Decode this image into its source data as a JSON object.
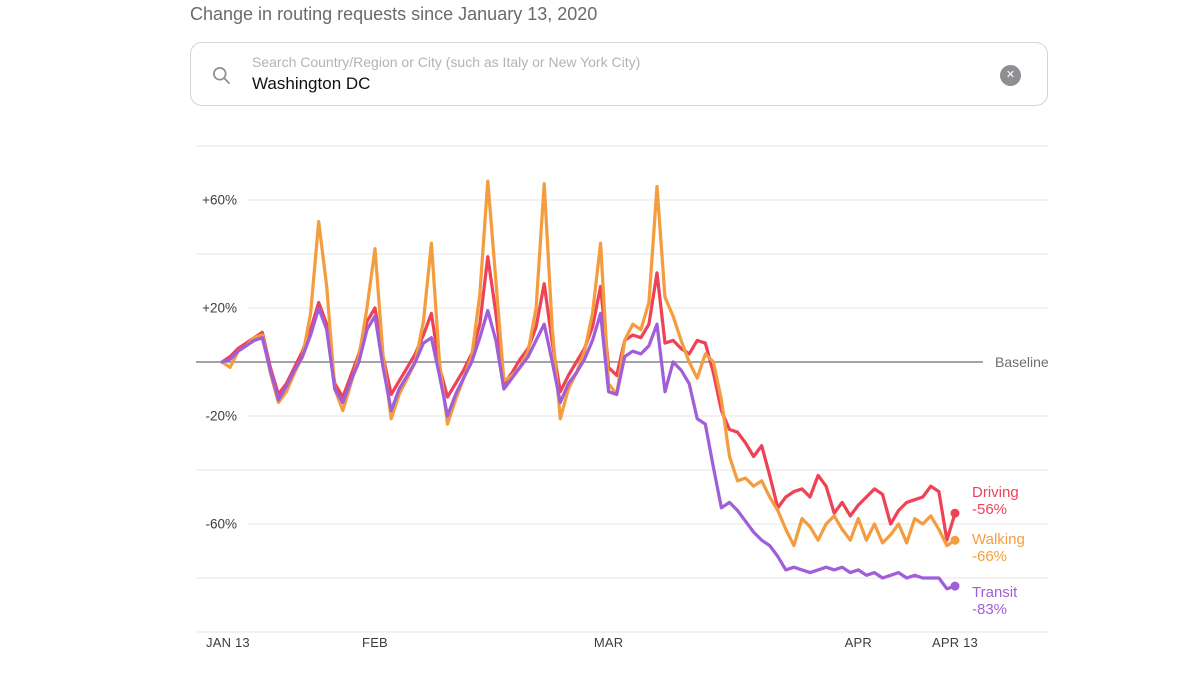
{
  "page": {
    "title": "Change in routing requests since January 13, 2020"
  },
  "search": {
    "placeholder": "Search Country/Region or City (such as Italy or New York City)",
    "value": "Washington DC",
    "clear_glyph": "✕"
  },
  "chart_data": {
    "type": "line",
    "title": "Change in routing requests since January 13, 2020",
    "x_start": "Jan 13, 2020",
    "x_end": "Apr 13, 2020",
    "ylim": [
      -100,
      80
    ],
    "grid": true,
    "baseline_label": "Baseline",
    "y_grid": [
      {
        "value": 80
      },
      {
        "value": 60,
        "label": "+60%"
      },
      {
        "value": 40
      },
      {
        "value": 20,
        "label": "+20%"
      },
      {
        "value": 0,
        "baseline": true
      },
      {
        "value": -20,
        "label": "-20%"
      },
      {
        "value": -40
      },
      {
        "value": -60,
        "label": "-60%"
      },
      {
        "value": -80
      },
      {
        "value": -100
      }
    ],
    "x_ticks": [
      {
        "label": "JAN 13",
        "day": 0,
        "align": "start"
      },
      {
        "label": "FEB",
        "day": 19
      },
      {
        "label": "MAR",
        "day": 48
      },
      {
        "label": "APR",
        "day": 79
      },
      {
        "label": "APR 13",
        "day": 91
      }
    ],
    "dates": [
      "Jan 13",
      "Jan 14",
      "Jan 15",
      "Jan 16",
      "Jan 17",
      "Jan 18",
      "Jan 19",
      "Jan 20",
      "Jan 21",
      "Jan 22",
      "Jan 23",
      "Jan 24",
      "Jan 25",
      "Jan 26",
      "Jan 27",
      "Jan 28",
      "Jan 29",
      "Jan 30",
      "Jan 31",
      "Feb 1",
      "Feb 2",
      "Feb 3",
      "Feb 4",
      "Feb 5",
      "Feb 6",
      "Feb 7",
      "Feb 8",
      "Feb 9",
      "Feb 10",
      "Feb 11",
      "Feb 12",
      "Feb 13",
      "Feb 14",
      "Feb 15",
      "Feb 16",
      "Feb 17",
      "Feb 18",
      "Feb 19",
      "Feb 20",
      "Feb 21",
      "Feb 22",
      "Feb 23",
      "Feb 24",
      "Feb 25",
      "Feb 26",
      "Feb 27",
      "Feb 28",
      "Feb 29",
      "Mar 1",
      "Mar 2",
      "Mar 3",
      "Mar 4",
      "Mar 5",
      "Mar 6",
      "Mar 7",
      "Mar 8",
      "Mar 9",
      "Mar 10",
      "Mar 11",
      "Mar 12",
      "Mar 13",
      "Mar 14",
      "Mar 15",
      "Mar 16",
      "Mar 17",
      "Mar 18",
      "Mar 19",
      "Mar 20",
      "Mar 21",
      "Mar 22",
      "Mar 23",
      "Mar 24",
      "Mar 25",
      "Mar 26",
      "Mar 27",
      "Mar 28",
      "Mar 29",
      "Mar 30",
      "Mar 31",
      "Apr 1",
      "Apr 2",
      "Apr 3",
      "Apr 4",
      "Apr 5",
      "Apr 6",
      "Apr 7",
      "Apr 8",
      "Apr 9",
      "Apr 10",
      "Apr 11",
      "Apr 12",
      "Apr 13"
    ],
    "series": [
      {
        "name": "Driving",
        "color": "#ee4256",
        "end_label": "Driving",
        "end_value_label": "-56%",
        "values": [
          0,
          2,
          5,
          7,
          9,
          11,
          -2,
          -12,
          -8,
          -2,
          4,
          12,
          22,
          14,
          -8,
          -13,
          -5,
          3,
          15,
          20,
          2,
          -12,
          -7,
          -2,
          3,
          10,
          18,
          -2,
          -13,
          -8,
          -3,
          3,
          14,
          39,
          18,
          -8,
          -4,
          1,
          5,
          13,
          29,
          7,
          -11,
          -5,
          0,
          5,
          13,
          28,
          -2,
          -5,
          8,
          10,
          9,
          14,
          33,
          7,
          8,
          5,
          3,
          8,
          7,
          -4,
          -18,
          -25,
          -26,
          -30,
          -35,
          -31,
          -42,
          -54,
          -50,
          -48,
          -47,
          -50,
          -42,
          -46,
          -56,
          -52,
          -57,
          -53,
          -50,
          -47,
          -49,
          -60,
          -55,
          -52,
          -51,
          -50,
          -46,
          -48,
          -66,
          -56
        ]
      },
      {
        "name": "Walking",
        "color": "#f49d3f",
        "end_label": "Walking",
        "end_value_label": "-66%",
        "values": [
          0,
          -2,
          4,
          6,
          9,
          10,
          -4,
          -15,
          -11,
          -4,
          2,
          18,
          52,
          28,
          -10,
          -18,
          -8,
          2,
          20,
          42,
          2,
          -21,
          -12,
          -6,
          0,
          15,
          44,
          0,
          -23,
          -14,
          -6,
          2,
          25,
          67,
          30,
          -7,
          -5,
          -2,
          4,
          20,
          66,
          12,
          -21,
          -10,
          -4,
          4,
          18,
          44,
          -8,
          -12,
          8,
          14,
          12,
          22,
          65,
          24,
          17,
          8,
          0,
          -6,
          3,
          0,
          -14,
          -35,
          -44,
          -43,
          -46,
          -44,
          -50,
          -55,
          -62,
          -68,
          -58,
          -61,
          -66,
          -60,
          -57,
          -62,
          -66,
          -58,
          -66,
          -60,
          -67,
          -64,
          -60,
          -67,
          -58,
          -60,
          -57,
          -62,
          -68,
          -66
        ]
      },
      {
        "name": "Transit",
        "color": "#a05fd8",
        "end_label": "Transit",
        "end_value_label": "-83%",
        "values": [
          0,
          1,
          4,
          6,
          8,
          9,
          -3,
          -14,
          -9,
          -3,
          2,
          10,
          20,
          12,
          -10,
          -15,
          -7,
          0,
          12,
          17,
          -2,
          -18,
          -10,
          -5,
          0,
          7,
          9,
          -5,
          -20,
          -12,
          -6,
          0,
          9,
          19,
          8,
          -10,
          -6,
          -2,
          2,
          8,
          14,
          0,
          -15,
          -8,
          -4,
          1,
          8,
          18,
          -11,
          -12,
          2,
          4,
          3,
          6,
          14,
          -11,
          0,
          -3,
          -8,
          -21,
          -23,
          -39,
          -54,
          -52,
          -55,
          -59,
          -63,
          -66,
          -68,
          -72,
          -77,
          -76,
          -77,
          -78,
          -77,
          -76,
          -77,
          -76,
          -78,
          -77,
          -79,
          -78,
          -80,
          -79,
          -78,
          -80,
          -79,
          -80,
          -80,
          -80,
          -84,
          -83
        ]
      }
    ],
    "colors": {
      "grid": "#e5e5e7",
      "baseline": "#6d6d72",
      "axis_text": "#3c3c43",
      "baseline_text": "#6e6e73"
    }
  }
}
